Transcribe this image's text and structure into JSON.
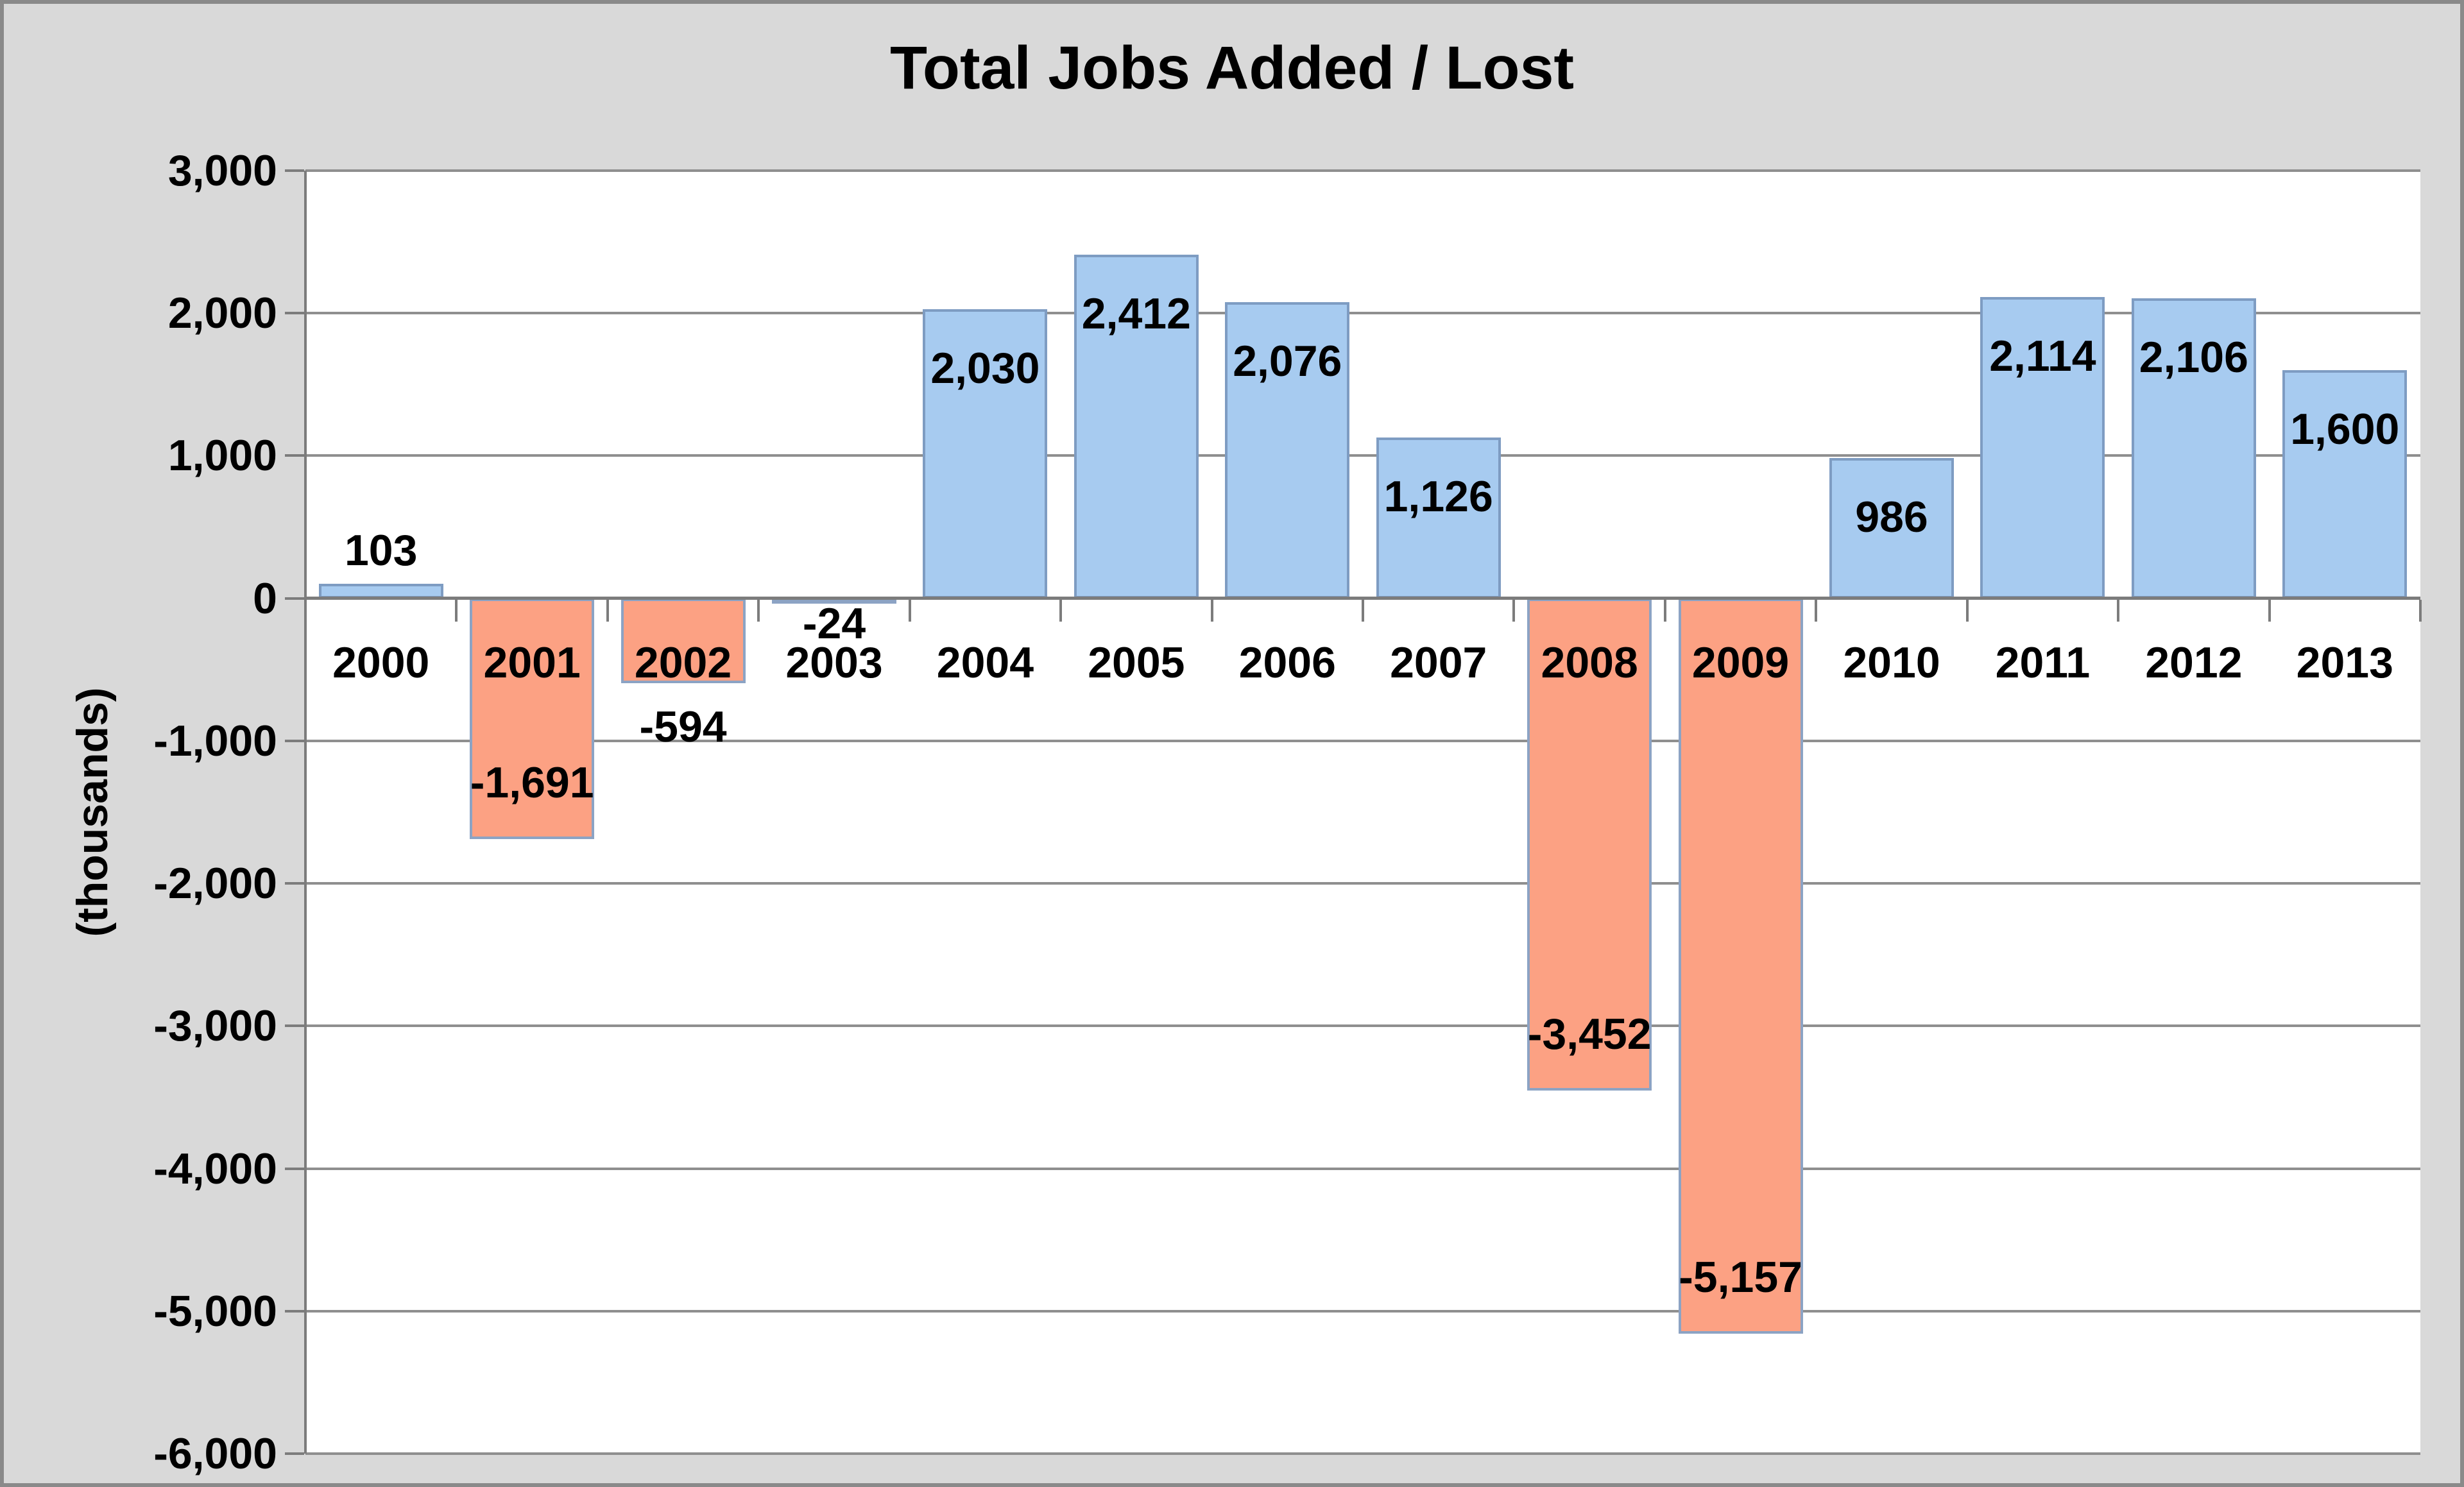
{
  "chart_data": {
    "type": "bar",
    "title": "Total Jobs Added / Lost",
    "xlabel": "",
    "ylabel": "(thousands)",
    "categories": [
      "2000",
      "2001",
      "2002",
      "2003",
      "2004",
      "2005",
      "2006",
      "2007",
      "2008",
      "2009",
      "2010",
      "2011",
      "2012",
      "2013"
    ],
    "values": [
      103,
      -1691,
      -594,
      -24,
      2030,
      2412,
      2076,
      1126,
      -3452,
      -5157,
      986,
      2114,
      2106,
      1600
    ],
    "value_labels": [
      "103",
      "-1,691",
      "-594",
      "-24",
      "2,030",
      "2,412",
      "2,076",
      "1,126",
      "-3,452",
      "-5,157",
      "986",
      "2,114",
      "2,106",
      "1,600"
    ],
    "ylim": [
      -6000,
      3000
    ],
    "ytick_step": 1000,
    "ytick_labels": [
      "3,000",
      "2,000",
      "1,000",
      "0",
      "-1,000",
      "-2,000",
      "-3,000",
      "-4,000",
      "-5,000",
      "-6,000"
    ],
    "grid": true,
    "legend": "none",
    "label_placement": "inside-end (outside-end for bars smaller than ~800)",
    "category_label_position": "next to zero axis, below it"
  },
  "colors": {
    "positive_fill": "#A7CBF0",
    "positive_border": "#7E9CC2",
    "negative_fill": "#FCA183",
    "negative_border": "#8CA3C4",
    "background": "#D9D9D9",
    "plot_background": "#FFFFFF",
    "gridline": "#8F8F8F",
    "axis": "#7C7C7C",
    "frame_border": "#8A8A8A",
    "text": "#000000"
  }
}
